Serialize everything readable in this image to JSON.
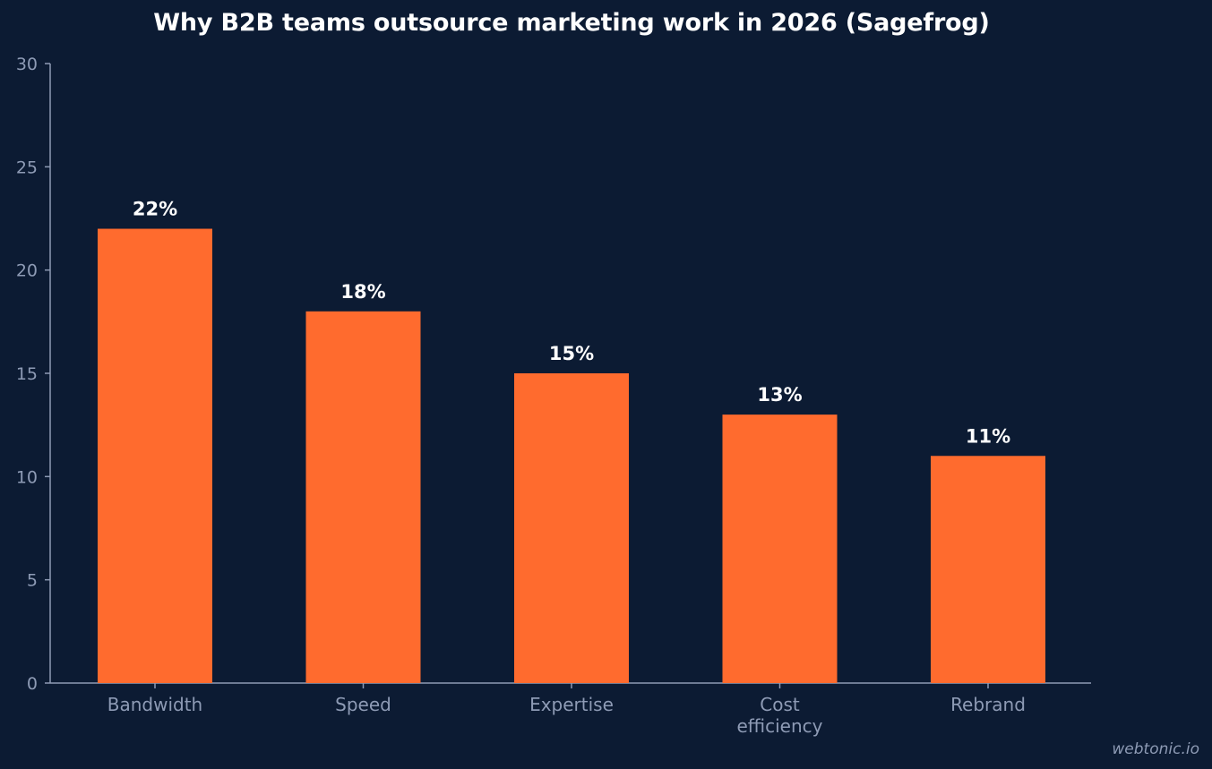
{
  "chart_data": {
    "type": "bar",
    "title": "Why B2B teams outsource marketing work in 2026 (Sagefrog)",
    "categories": [
      "Bandwidth",
      "Speed",
      "Expertise",
      "Cost efficiency",
      "Rebrand"
    ],
    "category_lines": [
      [
        "Bandwidth"
      ],
      [
        "Speed"
      ],
      [
        "Expertise"
      ],
      [
        "Cost",
        "efficiency"
      ],
      [
        "Rebrand"
      ]
    ],
    "values": [
      22,
      18,
      15,
      13,
      11
    ],
    "value_labels": [
      "22%",
      "18%",
      "15%",
      "13%",
      "11%"
    ],
    "xlabel": "",
    "ylabel": "",
    "ylim": [
      0,
      30
    ],
    "yticks": [
      0,
      5,
      10,
      15,
      20,
      25,
      30
    ],
    "grid": false,
    "legend": "none",
    "bar_color": "#ff6b2e",
    "axis_color": "#8e9bb5",
    "label_color": "#ffffff",
    "background": "#0c1b33"
  },
  "watermark": "webtonic.io"
}
